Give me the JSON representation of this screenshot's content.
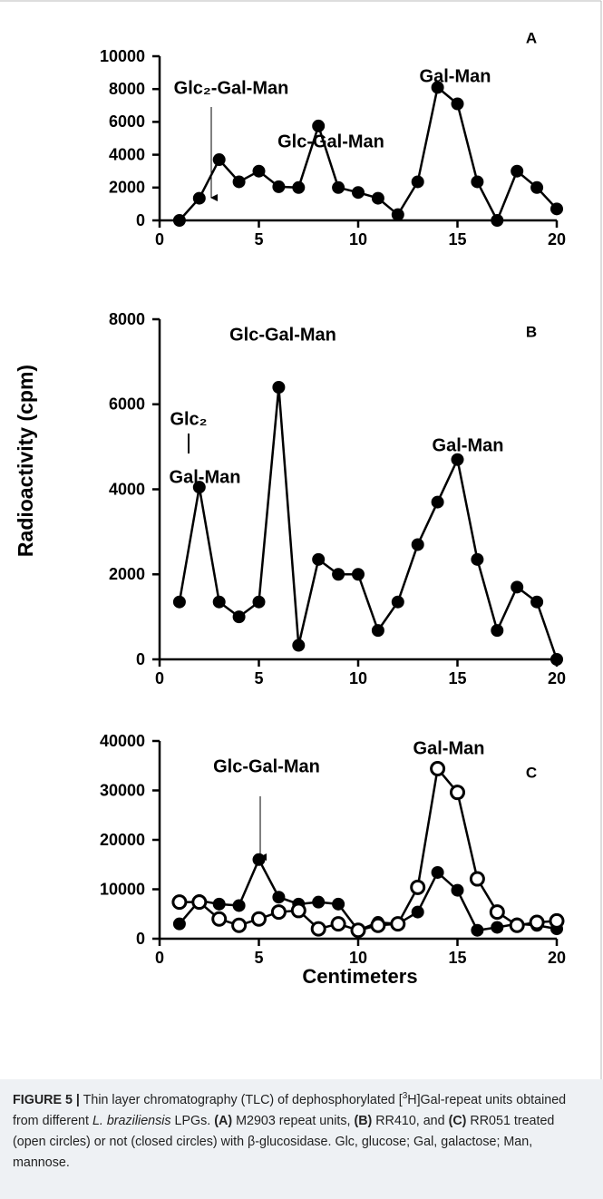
{
  "chart_data": [
    {
      "type": "line",
      "panel_label": "A",
      "x": [
        1,
        2,
        3,
        4,
        5,
        6,
        7,
        8,
        9,
        10,
        11,
        12,
        13,
        14,
        15,
        16,
        17,
        18,
        19,
        20
      ],
      "series": [
        {
          "color": "#000000",
          "marker": "filled",
          "values": [
            0,
            1350,
            3700,
            2350,
            3000,
            2050,
            2000,
            5750,
            2000,
            1700,
            1350,
            350,
            2350,
            8100,
            7100,
            2350,
            0,
            3000,
            2000,
            700
          ]
        }
      ],
      "xlim": [
        0,
        20
      ],
      "xticks": [
        0,
        5,
        10,
        15,
        20
      ],
      "ylim": [
        0,
        10000
      ],
      "yticks": [
        0,
        2000,
        4000,
        6000,
        8000,
        10000
      ],
      "annotations": [
        "Glc₂-Gal-Man",
        "Glc-Gal-Man",
        "Gal-Man"
      ]
    },
    {
      "type": "line",
      "panel_label": "B",
      "ylabel": "Radioactivity (cpm)",
      "x": [
        1,
        2,
        3,
        4,
        5,
        6,
        7,
        8,
        9,
        10,
        11,
        12,
        13,
        14,
        15,
        16,
        17,
        18,
        19,
        20
      ],
      "series": [
        {
          "color": "#000000",
          "marker": "filled",
          "values": [
            1350,
            4050,
            1350,
            1000,
            1350,
            6400,
            330,
            2350,
            2000,
            2000,
            680,
            1350,
            2700,
            3700,
            4700,
            2350,
            680,
            1700,
            1350,
            0
          ]
        }
      ],
      "xlim": [
        0,
        20
      ],
      "xticks": [
        0,
        5,
        10,
        15,
        20
      ],
      "ylim": [
        0,
        8000
      ],
      "yticks": [
        0,
        2000,
        4000,
        6000,
        8000
      ],
      "annotations": [
        "Glc-Gal-Man",
        "Glc₂",
        "Gal-Man",
        "Gal-Man"
      ]
    },
    {
      "type": "line",
      "panel_label": "C",
      "xlabel": "Centimeters",
      "x": [
        1,
        2,
        3,
        4,
        5,
        6,
        7,
        8,
        9,
        10,
        11,
        12,
        13,
        14,
        15,
        16,
        17,
        18,
        19,
        20
      ],
      "series": [
        {
          "color": "#000000",
          "marker": "filled",
          "values": [
            3000,
            7700,
            7000,
            6700,
            16000,
            8400,
            7000,
            7400,
            7000,
            1700,
            3300,
            3000,
            5400,
            13400,
            9800,
            1700,
            2300,
            3000,
            2700,
            2000
          ]
        },
        {
          "color": "#000000",
          "marker": "open",
          "values": [
            7400,
            7400,
            4000,
            2700,
            4000,
            5400,
            5700,
            2000,
            3000,
            1700,
            2700,
            3000,
            10400,
            34400,
            29600,
            12100,
            5400,
            2700,
            3300,
            3600
          ]
        }
      ],
      "xlim": [
        0,
        20
      ],
      "xticks": [
        0,
        5,
        10,
        15,
        20
      ],
      "ylim": [
        0,
        40000
      ],
      "yticks": [
        0,
        10000,
        20000,
        30000,
        40000
      ],
      "annotations": [
        "Glc-Gal-Man",
        "Gal-Man"
      ]
    }
  ],
  "caption": [
    {
      "text": "FIGURE 5 |",
      "style": "bold"
    },
    {
      "text": " Thin layer chromatography (TLC) of dephosphorylated ["
    },
    {
      "text": "3",
      "style": "sup"
    },
    {
      "text": "H]Gal-repeat units obtained from different "
    },
    {
      "text": "L. braziliensis",
      "style": "italic"
    },
    {
      "text": " LPGs. "
    },
    {
      "text": "(A)",
      "style": "bold"
    },
    {
      "text": " M2903 repeat units, "
    },
    {
      "text": "(B)",
      "style": "bold"
    },
    {
      "text": " RR410, and "
    },
    {
      "text": "(C)",
      "style": "bold"
    },
    {
      "text": " RR051 treated (open circles) or not (closed circles) with β-glucosidase. Glc, glucose; Gal, galactose; Man, mannose."
    }
  ]
}
